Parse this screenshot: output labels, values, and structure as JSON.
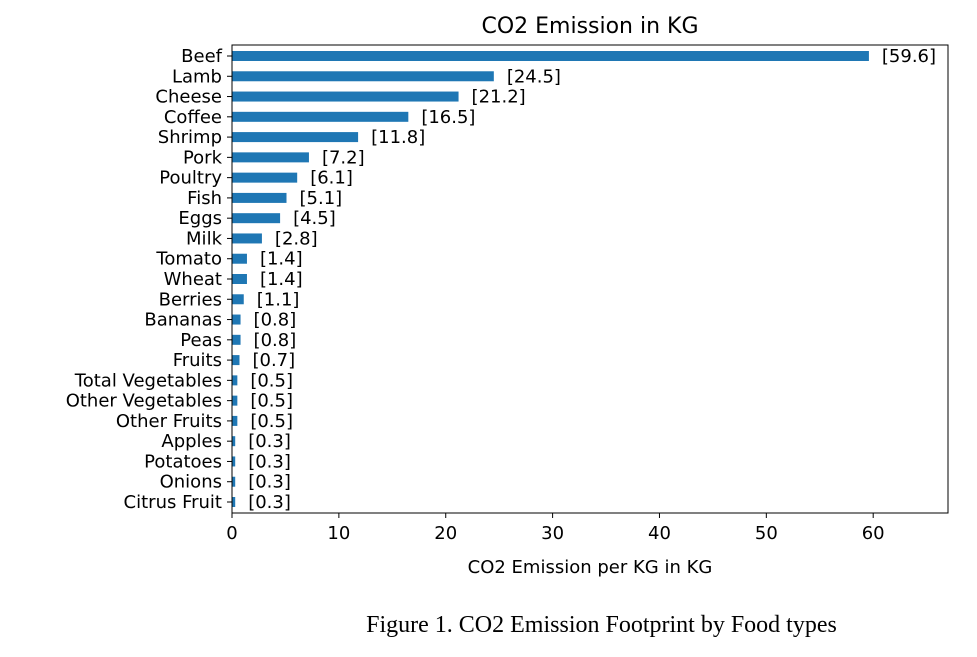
{
  "caption": "Figure 1. CO2 Emission Footprint by Food types",
  "chart_data": {
    "type": "bar",
    "orientation": "horizontal",
    "title": "CO2 Emission in KG",
    "xlabel": "CO2 Emission per KG in KG",
    "ylabel": "",
    "xlim": [
      0,
      67
    ],
    "xticks": [
      0,
      10,
      20,
      30,
      40,
      50,
      60
    ],
    "bar_color": "#1f77b4",
    "grid": false,
    "categories": [
      "Beef",
      "Lamb",
      "Cheese",
      "Coffee",
      "Shrimp",
      "Pork",
      "Poultry",
      "Fish",
      "Eggs",
      "Milk",
      "Tomato",
      "Wheat",
      "Berries",
      "Bananas",
      "Peas",
      "Fruits",
      "Total Vegetables",
      "Other Vegetables",
      "Other Fruits",
      "Apples",
      "Potatoes",
      "Onions",
      "Citrus Fruit"
    ],
    "values": [
      59.6,
      24.5,
      21.2,
      16.5,
      11.8,
      7.2,
      6.1,
      5.1,
      4.5,
      2.8,
      1.4,
      1.4,
      1.1,
      0.8,
      0.8,
      0.7,
      0.5,
      0.5,
      0.5,
      0.3,
      0.3,
      0.3,
      0.3
    ],
    "data_labels": [
      "[59.6]",
      "[24.5]",
      "[21.2]",
      "[16.5]",
      "[11.8]",
      "[7.2]",
      "[6.1]",
      "[5.1]",
      "[4.5]",
      "[2.8]",
      "[1.4]",
      "[1.4]",
      "[1.1]",
      "[0.8]",
      "[0.8]",
      "[0.7]",
      "[0.5]",
      "[0.5]",
      "[0.5]",
      "[0.3]",
      "[0.3]",
      "[0.3]",
      "[0.3]"
    ]
  }
}
